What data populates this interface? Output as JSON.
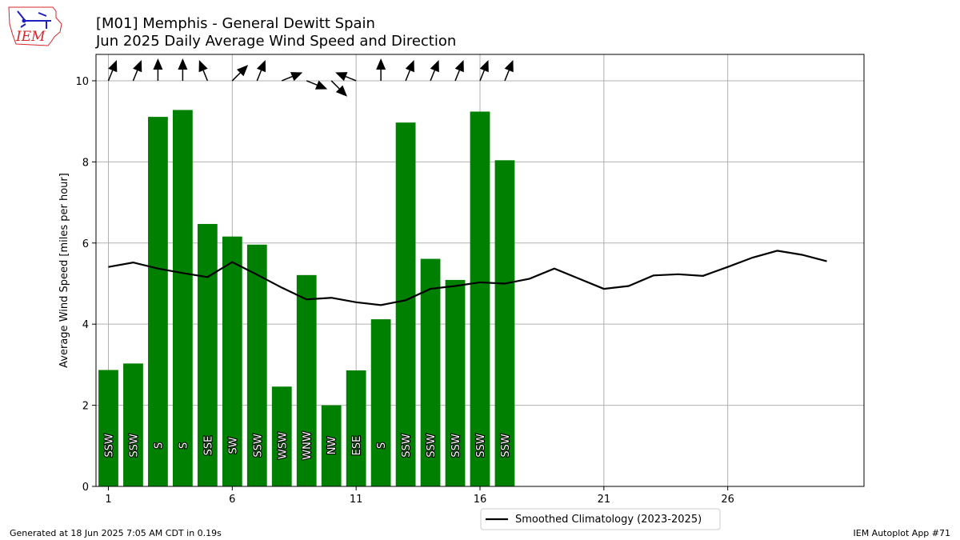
{
  "header": {
    "title_line1": "[M01] Memphis - General Dewitt Spain",
    "title_line2": "Jun 2025 Daily Average Wind Speed and Direction",
    "logo_text": "IEM"
  },
  "footer": {
    "left": "Generated at 18 Jun 2025 7:05 AM CDT in 0.19s",
    "right": "IEM Autoplot App #71"
  },
  "colors": {
    "bar": "#008000",
    "climatology": "#000000",
    "grid": "#b0b0b0",
    "logo_red": "#d62728",
    "logo_blue": "#1f1fbf"
  },
  "chart_data": {
    "type": "bar",
    "title": "[M01] Memphis - General Dewitt Spain\nJun 2025 Daily Average Wind Speed and Direction",
    "xlabel": "",
    "ylabel": "Average Wind Speed [miles per hour]",
    "xlim": [
      0.5,
      31.5
    ],
    "ylim": [
      0,
      10.65
    ],
    "xticks": [
      1,
      6,
      11,
      16,
      21,
      26
    ],
    "yticks": [
      0,
      2,
      4,
      6,
      8,
      10
    ],
    "grid": true,
    "legend_position": "bottom-center",
    "days": [
      1,
      2,
      3,
      4,
      5,
      6,
      7,
      8,
      9,
      10,
      11,
      12,
      13,
      14,
      15,
      16,
      17
    ],
    "values": [
      2.87,
      3.03,
      9.11,
      9.28,
      6.47,
      6.16,
      5.96,
      2.46,
      5.21,
      2.0,
      2.86,
      4.12,
      8.97,
      5.61,
      5.09,
      9.24,
      8.04
    ],
    "directions": [
      "SSW",
      "SSW",
      "S",
      "S",
      "SSE",
      "SW",
      "SSW",
      "WSW",
      "WNW",
      "NW",
      "ESE",
      "S",
      "SSW",
      "SSW",
      "SSW",
      "SSW",
      "SSW"
    ],
    "direction_degrees": [
      202,
      202,
      180,
      180,
      158,
      225,
      202,
      248,
      292,
      315,
      112,
      180,
      202,
      202,
      202,
      202,
      202
    ],
    "climatology": {
      "name": "Smoothed Climatology (2023-2025)",
      "x": [
        1,
        2,
        3,
        4,
        5,
        6,
        7,
        8,
        9,
        10,
        11,
        12,
        13,
        14,
        15,
        16,
        17,
        18,
        19,
        20,
        21,
        22,
        23,
        24,
        25,
        26,
        27,
        28,
        29,
        30
      ],
      "values": [
        5.41,
        5.52,
        5.37,
        5.26,
        5.16,
        5.53,
        5.22,
        4.9,
        4.61,
        4.65,
        4.54,
        4.47,
        4.59,
        4.87,
        4.94,
        5.03,
        5.0,
        5.12,
        5.37,
        5.12,
        4.87,
        4.94,
        5.2,
        5.23,
        5.19,
        5.41,
        5.64,
        5.81,
        5.71,
        5.55
      ]
    }
  }
}
